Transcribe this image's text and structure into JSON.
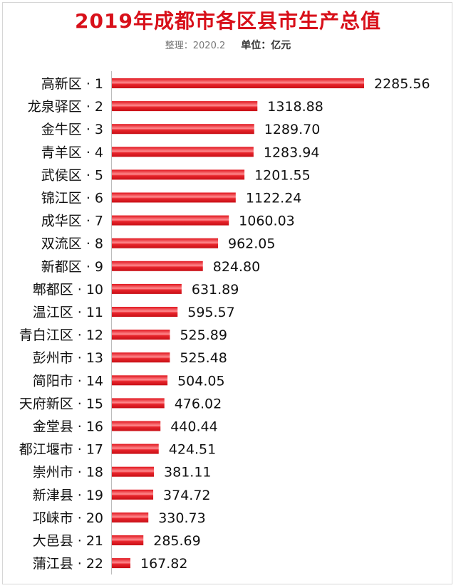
{
  "header": {
    "title": "2019年成都市各区县市生产总值",
    "note": "整理：2020.2",
    "unit": "单位：亿元"
  },
  "colors": {
    "bar": "#e0141c",
    "bar_highlight": "#ff8a8e",
    "title": "#d8101a"
  },
  "chart_data": {
    "type": "bar",
    "orientation": "horizontal",
    "title": "2019年成都市各区县市生产总值",
    "xlim": [
      0,
      2400
    ],
    "grid": false,
    "categories": [
      "高新区 · 1",
      "龙泉驿区 · 2",
      "金牛区 · 3",
      "青羊区 · 4",
      "武侯区 · 5",
      "锦江区 · 6",
      "成华区 · 7",
      "双流区 · 8",
      "新都区 · 9",
      "郫都区 · 10",
      "温江区 · 11",
      "青白江区 · 12",
      "彭州市 · 13",
      "简阳市 · 14",
      "天府新区 · 15",
      "金堂县 · 16",
      "都江堰市 · 17",
      "崇州市 · 18",
      "新津县 · 19",
      "邛崃市 · 20",
      "大邑县 · 21",
      "蒲江县 · 22"
    ],
    "values": [
      2285.56,
      1318.88,
      1289.7,
      1283.94,
      1201.55,
      1122.24,
      1060.03,
      962.05,
      824.8,
      631.89,
      595.57,
      525.89,
      525.48,
      504.05,
      476.02,
      440.44,
      424.51,
      381.11,
      374.72,
      330.73,
      285.69,
      167.82
    ],
    "value_labels": [
      "2285.56",
      "1318.88",
      "1289.70",
      "1283.94",
      "1201.55",
      "1122.24",
      "1060.03",
      "962.05",
      "824.80",
      "631.89",
      "595.57",
      "525.89",
      "525.48",
      "504.05",
      "476.02",
      "440.44",
      "424.51",
      "381.11",
      "374.72",
      "330.73",
      "285.69",
      "167.82"
    ]
  }
}
